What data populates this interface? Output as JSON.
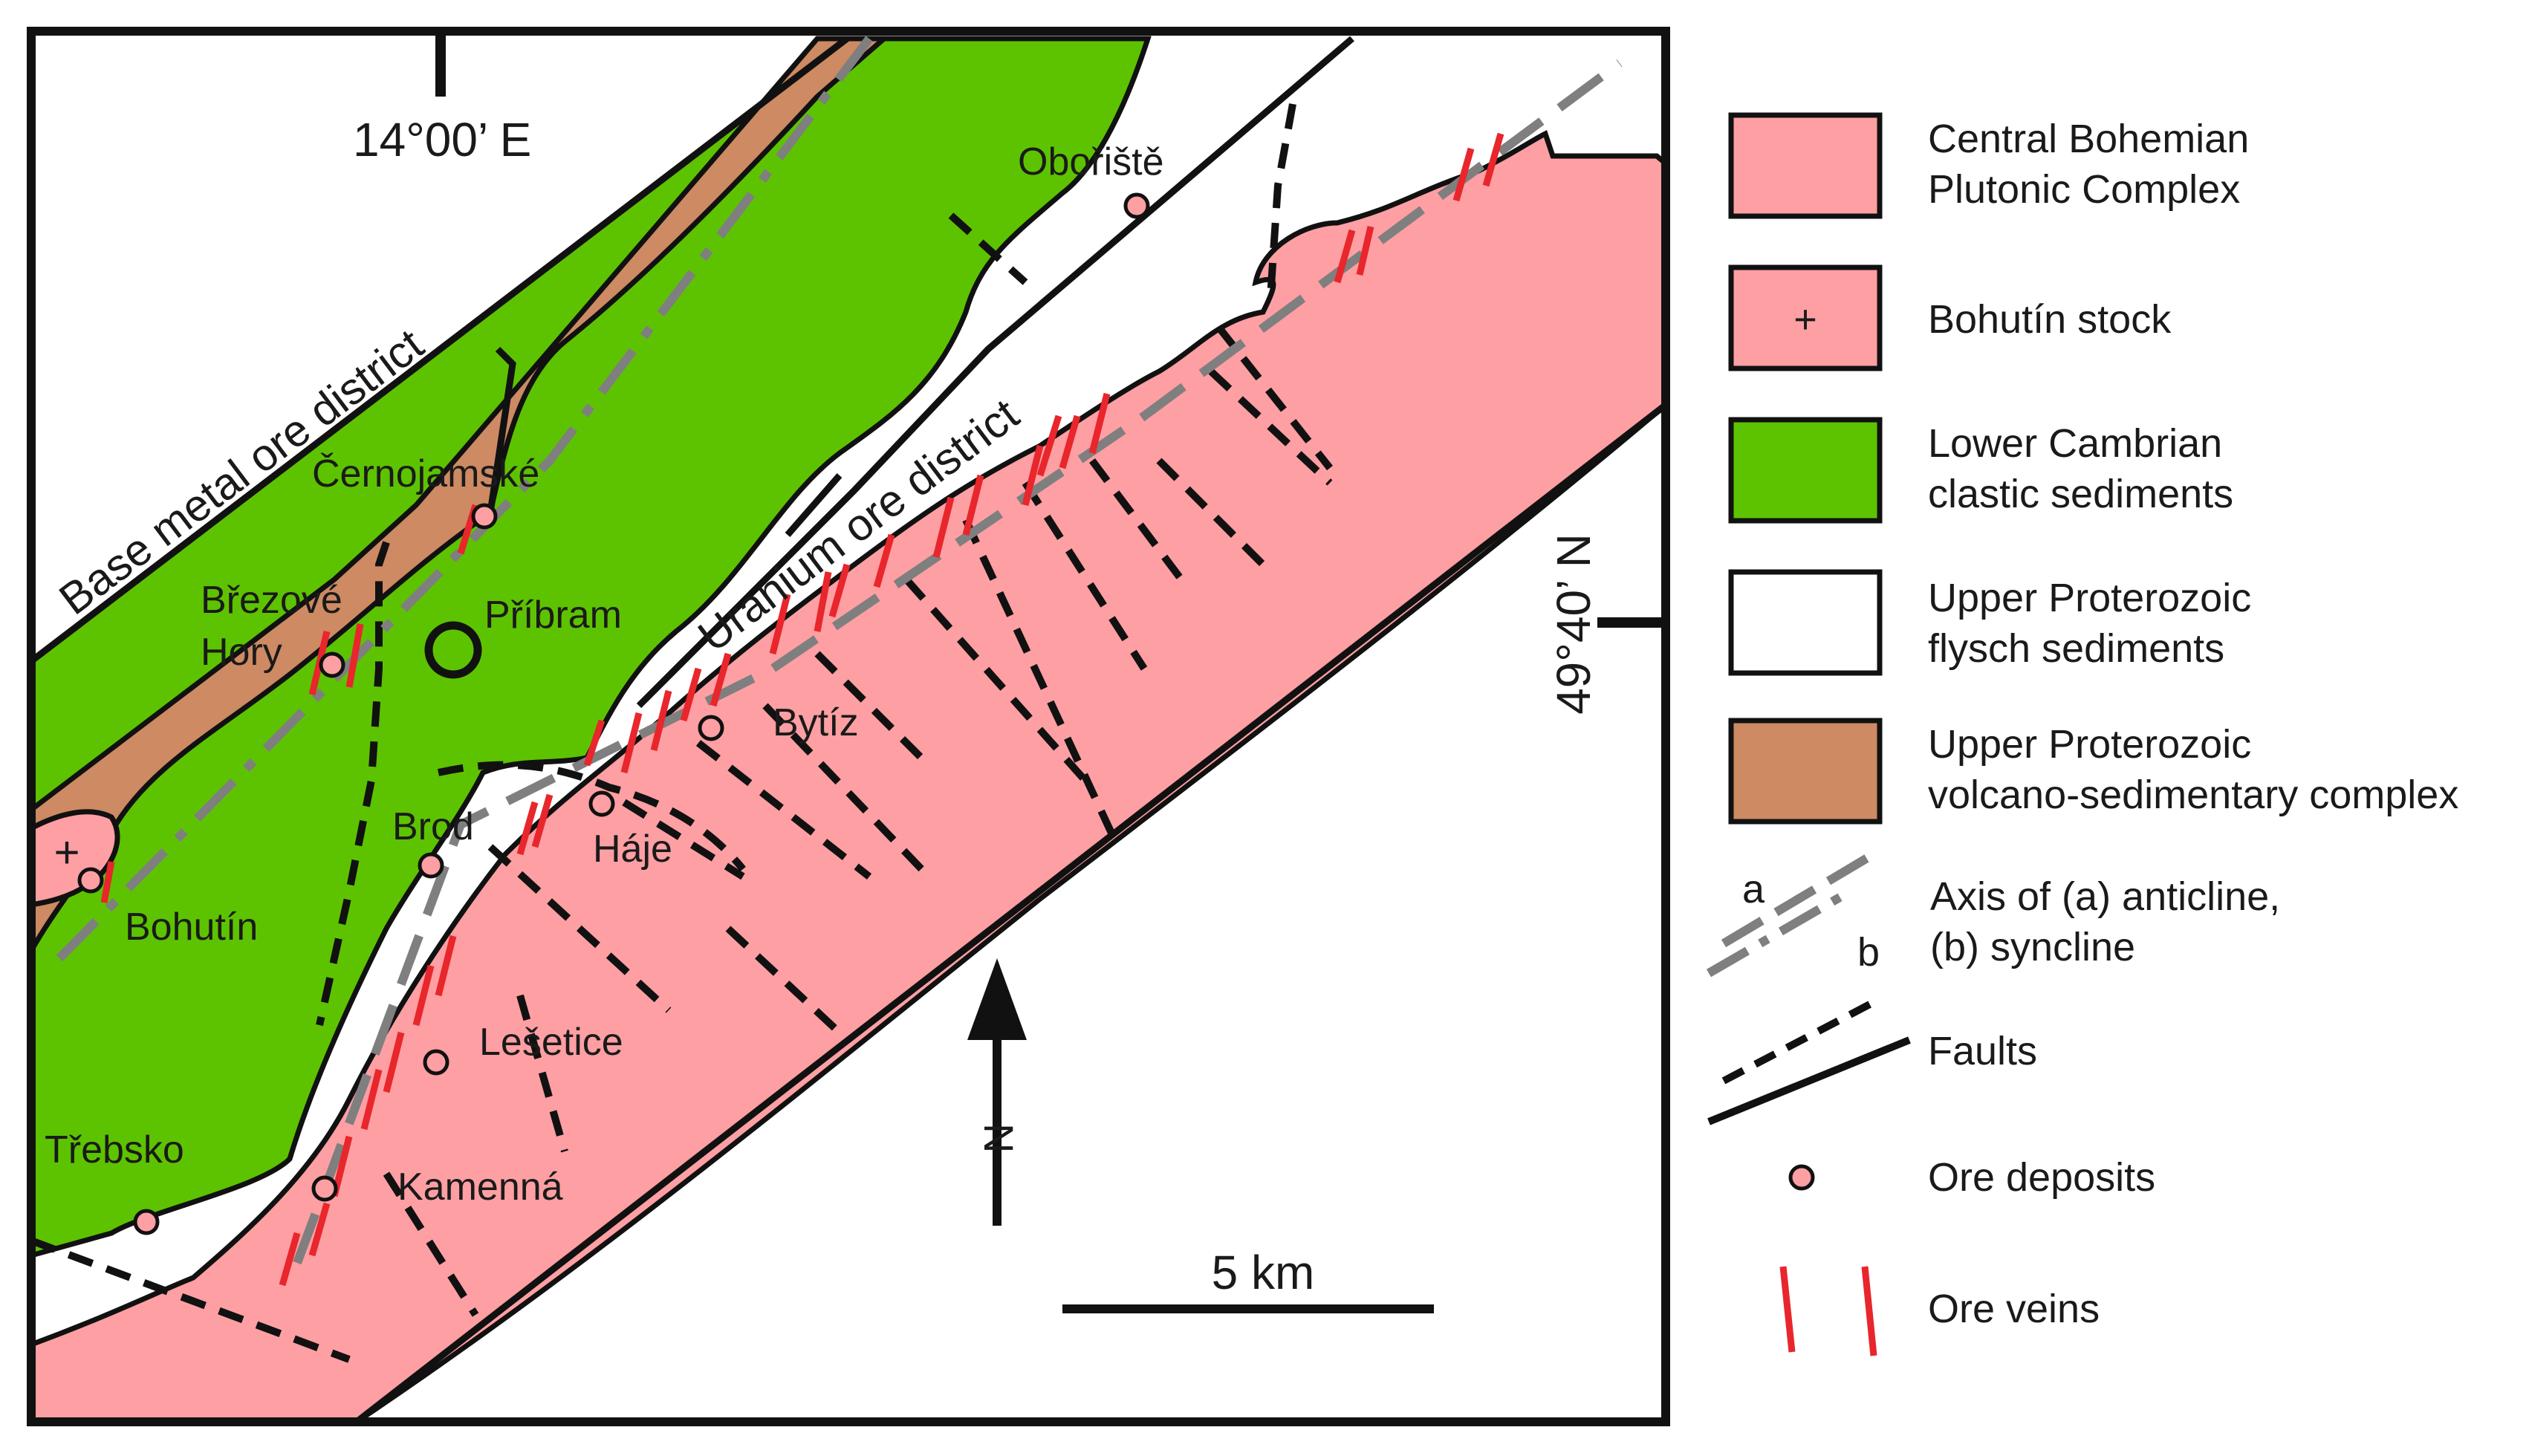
{
  "colors": {
    "pluton": "#fd9fa3",
    "cambrian": "#5dc300",
    "volcano": "#cd8a63",
    "flysch": "#ffffff",
    "fault": "#111111",
    "axis": "#7f7f7f",
    "vein": "#e8262c",
    "deposit": "#fd9fa3"
  },
  "coordinates": {
    "longitude": "14°00’ E",
    "latitude": "49°40’ N"
  },
  "districts": {
    "base_metal": "Base metal ore district",
    "uranium": "Uranium ore district"
  },
  "towns": {
    "oboriste": "Obořiště",
    "cernojamske": "Černojamské",
    "brezove": "Březové",
    "hory": "Hory",
    "pribram": "Příbram",
    "bytiz": "Bytíz",
    "haje": "Háje",
    "brod": "Brod",
    "bohutin": "Bohutín",
    "lesetice": "Lešetice",
    "trebsko": "Třebsko",
    "kamenna": "Kamenná"
  },
  "north_arrow": {
    "label": "N"
  },
  "scale_bar": {
    "label": "5 km"
  },
  "stock_symbol": "+",
  "legend": {
    "pluton": [
      "Central Bohemian",
      "Plutonic Complex"
    ],
    "stock_symbol": "+",
    "stock": "Bohutín stock",
    "cambrian": [
      "Lower Cambrian",
      "clastic sediments"
    ],
    "flysch": [
      "Upper Proterozoic",
      "flysch sediments"
    ],
    "volcano": [
      "Upper Proterozoic",
      "volcano-sedimentary complex"
    ],
    "axis_a": "a",
    "axis_b": "b",
    "axis": [
      "Axis of (a) anticline,",
      "(b) syncline"
    ],
    "faults": "Faults",
    "deposits": "Ore deposits",
    "veins": "Ore veins"
  }
}
